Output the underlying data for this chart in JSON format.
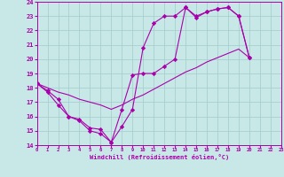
{
  "bg_color": "#c8e8e8",
  "grid_color": "#a8d0d0",
  "line_color": "#aa00aa",
  "xlabel": "Windchill (Refroidissement éolien,°C)",
  "xlim": [
    0,
    23
  ],
  "ylim": [
    14,
    24
  ],
  "xticks": [
    0,
    1,
    2,
    3,
    4,
    5,
    6,
    7,
    8,
    9,
    10,
    11,
    12,
    13,
    14,
    15,
    16,
    17,
    18,
    19,
    20,
    21,
    22,
    23
  ],
  "yticks": [
    14,
    15,
    16,
    17,
    18,
    19,
    20,
    21,
    22,
    23,
    24
  ],
  "series": [
    {
      "x": [
        0,
        1,
        2,
        3,
        4,
        5,
        6,
        7,
        8,
        9,
        10,
        11,
        12,
        13,
        14,
        15,
        16,
        17,
        18,
        19,
        20
      ],
      "y": [
        18.3,
        17.7,
        16.8,
        16.0,
        15.7,
        15.0,
        14.8,
        14.2,
        15.3,
        16.5,
        20.8,
        22.5,
        23.0,
        23.0,
        23.6,
        22.9,
        23.3,
        23.5,
        23.6,
        23.0,
        20.1
      ],
      "marker": "D",
      "markersize": 2.2
    },
    {
      "x": [
        0,
        1,
        2,
        3,
        4,
        5,
        6,
        7,
        8,
        9,
        10,
        11,
        12,
        13,
        14,
        15,
        16,
        17,
        18,
        19,
        20
      ],
      "y": [
        18.3,
        17.8,
        17.2,
        16.0,
        15.8,
        15.2,
        15.1,
        14.2,
        16.5,
        18.9,
        19.0,
        19.0,
        19.5,
        20.0,
        23.6,
        23.0,
        23.3,
        23.5,
        23.6,
        23.0,
        20.1
      ],
      "marker": "D",
      "markersize": 2.2
    },
    {
      "x": [
        0,
        1,
        2,
        3,
        4,
        5,
        6,
        7,
        8,
        9,
        10,
        11,
        12,
        13,
        14,
        15,
        16,
        17,
        18,
        19,
        20
      ],
      "y": [
        18.3,
        18.0,
        17.7,
        17.5,
        17.2,
        17.0,
        16.8,
        16.5,
        16.8,
        17.2,
        17.5,
        17.9,
        18.3,
        18.7,
        19.1,
        19.4,
        19.8,
        20.1,
        20.4,
        20.7,
        20.1
      ],
      "marker": null,
      "markersize": 0
    }
  ]
}
